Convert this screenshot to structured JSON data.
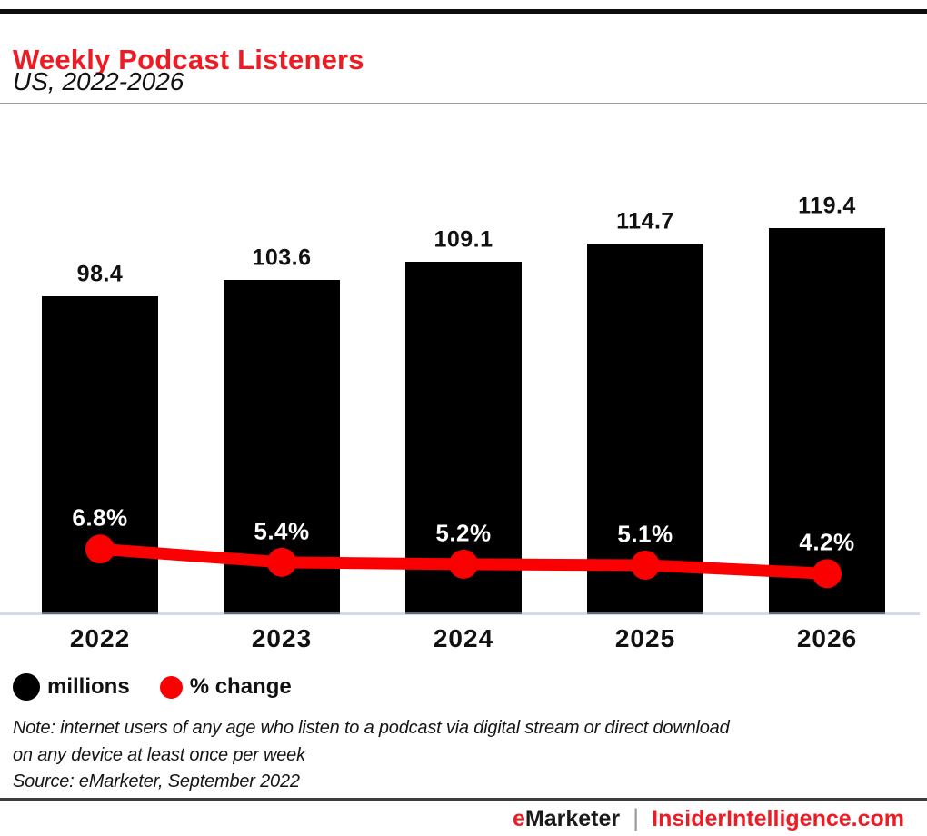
{
  "header": {
    "title": "Weekly Podcast Listeners",
    "subtitle": "US, 2022-2026"
  },
  "chart_data": {
    "type": "bar",
    "subtype": "bar-with-line-overlay",
    "title": "Weekly Podcast Listeners",
    "subtitle": "US, 2022-2026",
    "categories": [
      "2022",
      "2023",
      "2024",
      "2025",
      "2026"
    ],
    "series": [
      {
        "name": "millions",
        "type": "bar",
        "unit": "millions",
        "values": [
          98.4,
          103.6,
          109.1,
          114.7,
          119.4
        ]
      },
      {
        "name": "% change",
        "type": "line",
        "unit": "percent",
        "values": [
          6.8,
          5.4,
          5.2,
          5.1,
          4.2
        ]
      }
    ],
    "value_labels_shown": true,
    "xlabel": "",
    "ylabel": "",
    "axis_ticks_shown": false,
    "grid": false,
    "legend_position": "bottom-left"
  },
  "legend": {
    "items": [
      {
        "label": "millions",
        "color": "#000000"
      },
      {
        "label": "% change",
        "color": "#fa0000"
      }
    ]
  },
  "notes": {
    "line1": "Note: internet users of any age who listen to a podcast via digital stream or direct download",
    "line2": "on any device at least once per week",
    "source": "Source: eMarketer, September 2022"
  },
  "footer": {
    "brand_first_letter": "e",
    "brand_rest": "Marketer",
    "separator": "|",
    "site": "InsiderIntelligence.com"
  },
  "colors": {
    "brand_red": "#ed1c24",
    "line_red": "#fa0000",
    "bar_black": "#000000",
    "axis_line": "#aebbdd",
    "divider_gray": "#9a9a9a",
    "footer_rule": "#3c3c3c",
    "footer_separator": "#9b9b9b"
  }
}
